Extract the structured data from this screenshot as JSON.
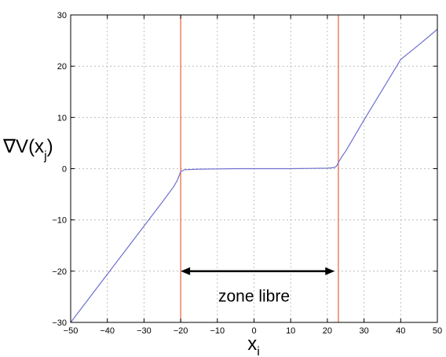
{
  "chart_data": {
    "type": "line",
    "xlabel": "x",
    "xlabel_sub": "i",
    "ylabel": "∇V(x",
    "ylabel_sub": "j",
    "ylabel_close": ")",
    "xlim": [
      -50,
      50
    ],
    "ylim": [
      -30,
      30
    ],
    "xticks": [
      -50,
      -40,
      -30,
      -20,
      -10,
      0,
      10,
      20,
      30,
      40,
      50
    ],
    "yticks": [
      -30,
      -20,
      -10,
      0,
      10,
      20,
      30
    ],
    "xtick_labels": [
      "−50",
      "−40",
      "−30",
      "−20",
      "−10",
      "0",
      "10",
      "20",
      "30",
      "40",
      "50"
    ],
    "ytick_labels": [
      "−30",
      "−20",
      "−10",
      "0",
      "10",
      "20",
      "30"
    ],
    "grid": true,
    "series": [
      {
        "color": "#6f6fd0",
        "x": [
          -50,
          -45,
          -40,
          -35,
          -30,
          -25,
          -22,
          -21,
          -20,
          -19,
          -15,
          -10,
          -5,
          0,
          5,
          10,
          15,
          20,
          21,
          22,
          22.5,
          23,
          24,
          25,
          30,
          35,
          40,
          45,
          50
        ],
        "y": [
          -30,
          -25.3,
          -20.6,
          -15.9,
          -11.2,
          -6.5,
          -3.6,
          -2.4,
          -0.6,
          -0.2,
          -0.1,
          -0.05,
          0,
          0,
          0,
          0,
          0.05,
          0.1,
          0.15,
          0.25,
          0.5,
          1.2,
          2.4,
          3.4,
          9.5,
          15.4,
          21.3,
          24.2,
          27.2
        ]
      }
    ],
    "vlines": [
      {
        "x": -20,
        "color": "#e8603a"
      },
      {
        "x": 23,
        "color": "#e8603a"
      }
    ],
    "annotation": {
      "text": "zone libre",
      "arrow_from": [
        -20,
        -20
      ],
      "arrow_to": [
        22,
        -20
      ],
      "text_x": 0,
      "text_y": -25
    }
  }
}
